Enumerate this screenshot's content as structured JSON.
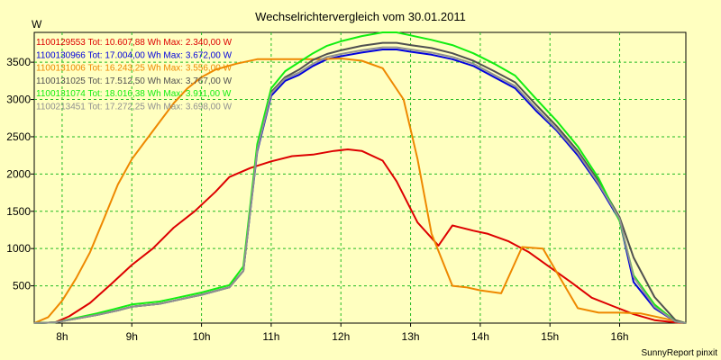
{
  "chart_data": {
    "type": "line",
    "title": "Wechselrichtervergleich vom 30.01.2011",
    "ylabel": "W",
    "xlabel": "",
    "xlim": [
      7.6,
      16.95
    ],
    "ylim": [
      0,
      3900
    ],
    "x_ticks": [
      8,
      9,
      10,
      11,
      12,
      13,
      14,
      15,
      16
    ],
    "x_tick_labels": [
      "8h",
      "9h",
      "10h",
      "11h",
      "12h",
      "13h",
      "14h",
      "15h",
      "16h"
    ],
    "y_ticks": [
      500,
      1000,
      1500,
      2000,
      2500,
      3000,
      3500
    ],
    "grid": true,
    "legend_position": "top-left",
    "footer": "SunnyReport pinxit",
    "series": [
      {
        "name": "1100129553 Tot: 10.607,88 Wh Max: 2.340,00 W",
        "color": "#dd0000",
        "points": [
          [
            7.6,
            0
          ],
          [
            7.9,
            10
          ],
          [
            8.1,
            90
          ],
          [
            8.4,
            270
          ],
          [
            8.7,
            520
          ],
          [
            9.0,
            780
          ],
          [
            9.3,
            1000
          ],
          [
            9.6,
            1280
          ],
          [
            9.9,
            1500
          ],
          [
            10.2,
            1760
          ],
          [
            10.4,
            1960
          ],
          [
            10.7,
            2080
          ],
          [
            11.0,
            2170
          ],
          [
            11.3,
            2240
          ],
          [
            11.6,
            2260
          ],
          [
            11.9,
            2310
          ],
          [
            12.1,
            2330
          ],
          [
            12.3,
            2310
          ],
          [
            12.6,
            2180
          ],
          [
            12.8,
            1900
          ],
          [
            13.1,
            1350
          ],
          [
            13.4,
            1040
          ],
          [
            13.6,
            1310
          ],
          [
            13.9,
            1240
          ],
          [
            14.1,
            1200
          ],
          [
            14.4,
            1100
          ],
          [
            14.7,
            950
          ],
          [
            15.0,
            750
          ],
          [
            15.3,
            550
          ],
          [
            15.6,
            340
          ],
          [
            15.9,
            230
          ],
          [
            16.2,
            120
          ],
          [
            16.5,
            40
          ],
          [
            16.8,
            10
          ],
          [
            16.95,
            0
          ]
        ]
      },
      {
        "name": "1100130966 Tot: 17.004,00 Wh Max: 3.672,00 W",
        "color": "#0000dd",
        "points": [
          [
            7.6,
            0
          ],
          [
            7.9,
            10
          ],
          [
            8.2,
            60
          ],
          [
            8.5,
            110
          ],
          [
            8.8,
            170
          ],
          [
            9.0,
            220
          ],
          [
            9.2,
            240
          ],
          [
            9.4,
            260
          ],
          [
            9.6,
            300
          ],
          [
            9.8,
            340
          ],
          [
            10.0,
            380
          ],
          [
            10.2,
            430
          ],
          [
            10.4,
            480
          ],
          [
            10.6,
            700
          ],
          [
            10.8,
            2300
          ],
          [
            11.0,
            3050
          ],
          [
            11.2,
            3250
          ],
          [
            11.4,
            3330
          ],
          [
            11.6,
            3450
          ],
          [
            11.8,
            3540
          ],
          [
            12.0,
            3580
          ],
          [
            12.3,
            3630
          ],
          [
            12.6,
            3670
          ],
          [
            12.8,
            3670
          ],
          [
            13.0,
            3640
          ],
          [
            13.3,
            3600
          ],
          [
            13.6,
            3540
          ],
          [
            13.9,
            3450
          ],
          [
            14.2,
            3300
          ],
          [
            14.5,
            3150
          ],
          [
            14.8,
            2850
          ],
          [
            15.1,
            2580
          ],
          [
            15.4,
            2250
          ],
          [
            15.7,
            1850
          ],
          [
            16.0,
            1380
          ],
          [
            16.2,
            550
          ],
          [
            16.5,
            200
          ],
          [
            16.8,
            20
          ],
          [
            16.95,
            0
          ]
        ]
      },
      {
        "name": "1100131006 Tot: 16.243,25 Wh Max: 3.556,00 W",
        "color": "#ee8800",
        "points": [
          [
            7.6,
            0
          ],
          [
            7.8,
            80
          ],
          [
            8.0,
            300
          ],
          [
            8.2,
            600
          ],
          [
            8.4,
            950
          ],
          [
            8.6,
            1400
          ],
          [
            8.8,
            1860
          ],
          [
            9.0,
            2200
          ],
          [
            9.2,
            2450
          ],
          [
            9.4,
            2700
          ],
          [
            9.6,
            2950
          ],
          [
            9.8,
            3150
          ],
          [
            10.0,
            3300
          ],
          [
            10.2,
            3400
          ],
          [
            10.5,
            3480
          ],
          [
            10.8,
            3540
          ],
          [
            11.1,
            3540
          ],
          [
            11.4,
            3540
          ],
          [
            11.7,
            3540
          ],
          [
            12.0,
            3550
          ],
          [
            12.3,
            3520
          ],
          [
            12.6,
            3420
          ],
          [
            12.9,
            3000
          ],
          [
            13.1,
            2200
          ],
          [
            13.3,
            1200
          ],
          [
            13.6,
            500
          ],
          [
            13.8,
            480
          ],
          [
            14.0,
            440
          ],
          [
            14.3,
            400
          ],
          [
            14.6,
            1020
          ],
          [
            14.9,
            1000
          ],
          [
            15.1,
            680
          ],
          [
            15.4,
            200
          ],
          [
            15.7,
            140
          ],
          [
            16.0,
            140
          ],
          [
            16.3,
            130
          ],
          [
            16.6,
            70
          ],
          [
            16.95,
            0
          ]
        ]
      },
      {
        "name": "1100131025 Tot: 17.512,50 Wh Max: 3.767,00 W",
        "color": "#505050",
        "points": [
          [
            7.6,
            0
          ],
          [
            7.9,
            10
          ],
          [
            8.2,
            60
          ],
          [
            8.5,
            110
          ],
          [
            8.8,
            170
          ],
          [
            9.0,
            220
          ],
          [
            9.2,
            240
          ],
          [
            9.4,
            260
          ],
          [
            9.6,
            300
          ],
          [
            9.8,
            340
          ],
          [
            10.0,
            380
          ],
          [
            10.2,
            430
          ],
          [
            10.4,
            480
          ],
          [
            10.6,
            700
          ],
          [
            10.8,
            2350
          ],
          [
            11.0,
            3100
          ],
          [
            11.2,
            3300
          ],
          [
            11.4,
            3400
          ],
          [
            11.6,
            3530
          ],
          [
            11.8,
            3610
          ],
          [
            12.0,
            3660
          ],
          [
            12.3,
            3720
          ],
          [
            12.6,
            3760
          ],
          [
            12.8,
            3760
          ],
          [
            13.0,
            3730
          ],
          [
            13.3,
            3690
          ],
          [
            13.6,
            3620
          ],
          [
            13.9,
            3520
          ],
          [
            14.2,
            3380
          ],
          [
            14.5,
            3230
          ],
          [
            14.8,
            2930
          ],
          [
            15.1,
            2640
          ],
          [
            15.4,
            2310
          ],
          [
            15.7,
            1900
          ],
          [
            16.0,
            1420
          ],
          [
            16.2,
            880
          ],
          [
            16.5,
            350
          ],
          [
            16.8,
            40
          ],
          [
            16.95,
            0
          ]
        ]
      },
      {
        "name": "1100131074 Tot: 18.016,38 Wh Max: 3.911,00 W",
        "color": "#11ee11",
        "points": [
          [
            7.6,
            0
          ],
          [
            7.9,
            10
          ],
          [
            8.2,
            70
          ],
          [
            8.5,
            130
          ],
          [
            8.8,
            200
          ],
          [
            9.0,
            250
          ],
          [
            9.2,
            270
          ],
          [
            9.4,
            290
          ],
          [
            9.6,
            330
          ],
          [
            9.8,
            370
          ],
          [
            10.0,
            410
          ],
          [
            10.2,
            460
          ],
          [
            10.4,
            510
          ],
          [
            10.6,
            760
          ],
          [
            10.8,
            2400
          ],
          [
            11.0,
            3150
          ],
          [
            11.2,
            3380
          ],
          [
            11.4,
            3500
          ],
          [
            11.6,
            3620
          ],
          [
            11.8,
            3720
          ],
          [
            12.0,
            3780
          ],
          [
            12.3,
            3850
          ],
          [
            12.6,
            3900
          ],
          [
            12.8,
            3900
          ],
          [
            13.0,
            3860
          ],
          [
            13.3,
            3800
          ],
          [
            13.6,
            3730
          ],
          [
            13.9,
            3620
          ],
          [
            14.2,
            3480
          ],
          [
            14.5,
            3320
          ],
          [
            14.8,
            3010
          ],
          [
            15.1,
            2710
          ],
          [
            15.4,
            2370
          ],
          [
            15.7,
            1940
          ],
          [
            16.0,
            1370
          ],
          [
            16.2,
            640
          ],
          [
            16.5,
            250
          ],
          [
            16.8,
            20
          ],
          [
            16.95,
            0
          ]
        ]
      },
      {
        "name": "1100213451 Tot: 17.272,25 Wh Max: 3.698,00 W",
        "color": "#909090",
        "points": [
          [
            7.6,
            0
          ],
          [
            7.9,
            10
          ],
          [
            8.2,
            60
          ],
          [
            8.5,
            110
          ],
          [
            8.8,
            170
          ],
          [
            9.0,
            220
          ],
          [
            9.2,
            240
          ],
          [
            9.4,
            260
          ],
          [
            9.6,
            300
          ],
          [
            9.8,
            340
          ],
          [
            10.0,
            380
          ],
          [
            10.2,
            430
          ],
          [
            10.4,
            480
          ],
          [
            10.6,
            700
          ],
          [
            10.8,
            2320
          ],
          [
            11.0,
            3080
          ],
          [
            11.2,
            3280
          ],
          [
            11.4,
            3360
          ],
          [
            11.6,
            3480
          ],
          [
            11.8,
            3570
          ],
          [
            12.0,
            3610
          ],
          [
            12.3,
            3660
          ],
          [
            12.6,
            3700
          ],
          [
            12.8,
            3700
          ],
          [
            13.0,
            3670
          ],
          [
            13.3,
            3630
          ],
          [
            13.6,
            3570
          ],
          [
            13.9,
            3480
          ],
          [
            14.2,
            3330
          ],
          [
            14.5,
            3180
          ],
          [
            14.8,
            2880
          ],
          [
            15.1,
            2600
          ],
          [
            15.4,
            2280
          ],
          [
            15.7,
            1870
          ],
          [
            16.0,
            1400
          ],
          [
            16.2,
            620
          ],
          [
            16.5,
            220
          ],
          [
            16.8,
            20
          ],
          [
            16.95,
            0
          ]
        ]
      }
    ]
  }
}
